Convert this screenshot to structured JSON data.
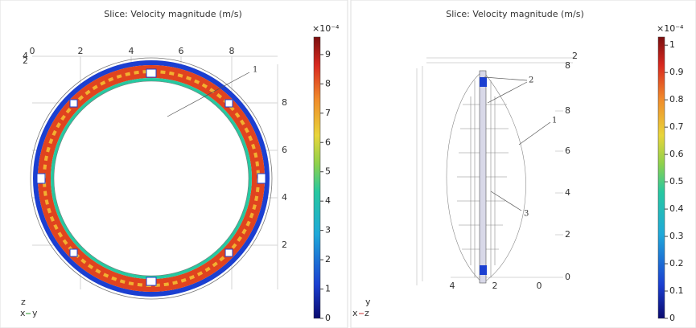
{
  "panels": [
    {
      "title": "Slice: Velocity magnitude (m/s)",
      "colorbar": {
        "exponent": "×10⁻⁴",
        "ticks": [
          0,
          1,
          2,
          3,
          4,
          5,
          6,
          7,
          8,
          9
        ],
        "lim": [
          0,
          9.6
        ]
      },
      "corner_labels": [
        "4",
        "2"
      ],
      "top_ticks": [
        "0",
        "2",
        "4",
        "6",
        "8"
      ],
      "side_ticks": [
        "8",
        "6",
        "4",
        "2"
      ],
      "callouts": [
        "1"
      ],
      "triad": {
        "up": "z",
        "left": "x",
        "right": "y"
      }
    },
    {
      "title": "Slice: Velocity magnitude (m/s)",
      "colorbar": {
        "exponent": "×10⁻⁴",
        "ticks": [
          0,
          0.1,
          0.2,
          0.3,
          0.4,
          0.5,
          0.6,
          0.7,
          0.8,
          0.9,
          1
        ],
        "lim": [
          0,
          1.03
        ]
      },
      "top_label": "2",
      "side_ticks": [
        "8",
        "8",
        "6",
        "4",
        "2",
        "0"
      ],
      "bottom_ticks": [
        "4",
        "2",
        "0"
      ],
      "callouts": [
        "2",
        "1",
        "3"
      ],
      "triad": {
        "up": "y",
        "left": "x",
        "right": "z"
      }
    }
  ]
}
